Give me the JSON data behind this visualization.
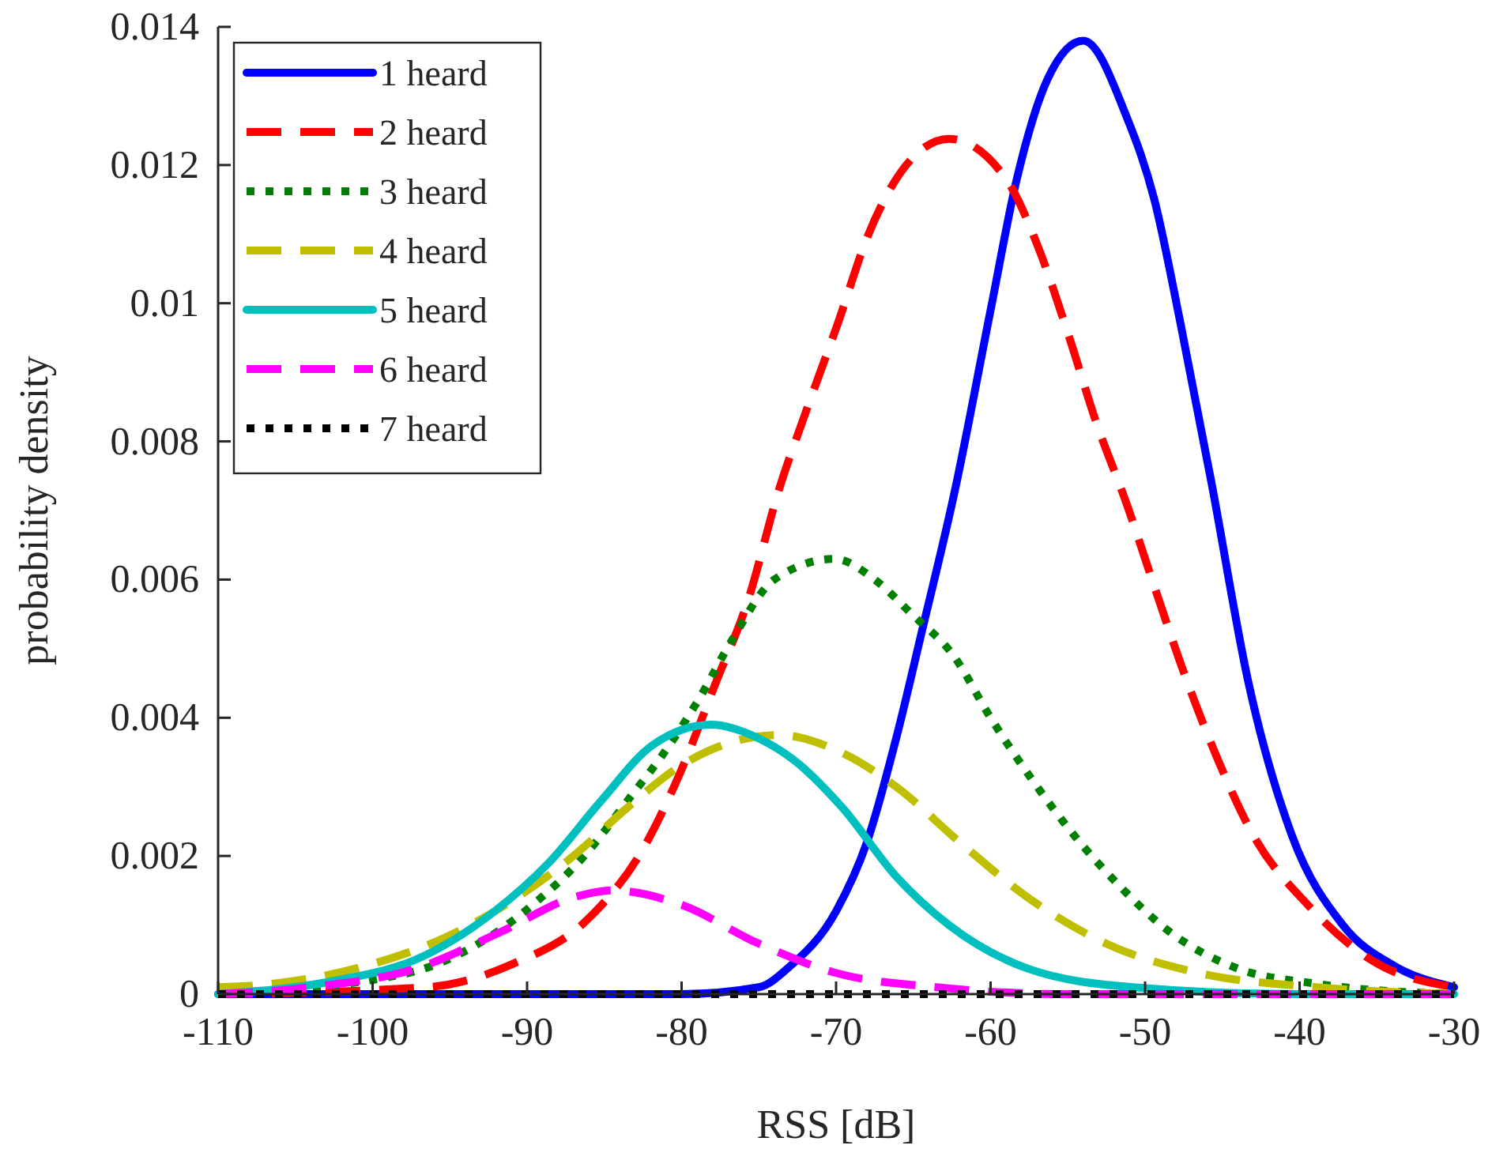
{
  "chart_data": {
    "type": "line",
    "xlabel": "RSS [dB]",
    "ylabel": "probability density",
    "xlim": [
      -110,
      -30
    ],
    "ylim": [
      0,
      0.014
    ],
    "xticks": [
      -110,
      -100,
      -90,
      -80,
      -70,
      -60,
      -50,
      -40,
      -30
    ],
    "yticks": [
      0,
      0.002,
      0.004,
      0.006,
      0.008,
      0.01,
      0.012,
      0.014
    ],
    "grid": false,
    "legend": "top left",
    "marker": "none",
    "series": [
      {
        "name": "1 heard",
        "color": "#0000ff",
        "line_style": "solid",
        "x": [
          -110,
          -90,
          -80,
          -75,
          -73,
          -70,
          -68,
          -66,
          -64.5,
          -62.3,
          -60,
          -58.3,
          -56.3,
          -54,
          -51.2,
          -49.4,
          -47.7,
          -45.7,
          -43.3,
          -40.5,
          -37.2,
          -33.8,
          -30
        ],
        "values": [
          0,
          0,
          0,
          0.0001,
          0.0004,
          0.0012,
          0.0022,
          0.0038,
          0.0052,
          0.0073,
          0.0099,
          0.0118,
          0.01325,
          0.0138,
          0.0127,
          0.0115,
          0.0097,
          0.0074,
          0.0045,
          0.0023,
          0.001,
          0.0004,
          0.0001
        ]
      },
      {
        "name": "2 heard",
        "color": "#ff0000",
        "line_style": "dashed",
        "x": [
          -110,
          -96.5,
          -91,
          -86,
          -82.5,
          -80.1,
          -77.8,
          -75.7,
          -73.7,
          -72,
          -69.9,
          -67.9,
          -65.8,
          -62.7,
          -59,
          -56.9,
          -54.9,
          -53.2,
          -51.2,
          -49.4,
          -47.4,
          -45.3,
          -43,
          -39.5,
          -35.4,
          -30
        ],
        "values": [
          0,
          0.0001,
          0.00043,
          0.0011,
          0.0021,
          0.0032,
          0.0045,
          0.0057,
          0.0073,
          0.0084,
          0.0097,
          0.011,
          0.0119,
          0.01238,
          0.0118,
          0.0108,
          0.0095,
          0.0083,
          0.0071,
          0.0059,
          0.0046,
          0.0034,
          0.0023,
          0.0013,
          0.0005,
          0.0001
        ]
      },
      {
        "name": "3 heard",
        "color": "#008000",
        "line_style": "dotted",
        "x": [
          -110,
          -97.8,
          -93.7,
          -89.6,
          -86.3,
          -83.5,
          -80.8,
          -78.8,
          -76.8,
          -74,
          -70.1,
          -67.5,
          -65.1,
          -62.4,
          -60,
          -57.3,
          -54.6,
          -51.8,
          -48.4,
          -44,
          -38.9,
          -30
        ],
        "values": [
          0,
          0.0003,
          0.00066,
          0.0013,
          0.002,
          0.0028,
          0.0036,
          0.0043,
          0.0051,
          0.006,
          0.0063,
          0.006,
          0.0055,
          0.0049,
          0.004,
          0.0031,
          0.0023,
          0.0016,
          0.0009,
          0.00037,
          0.00015,
          0
        ]
      },
      {
        "name": "4 heard",
        "color": "#bfbf00",
        "line_style": "dashed",
        "x": [
          -110,
          -107.4,
          -100.6,
          -95.5,
          -91,
          -87,
          -83.5,
          -80.1,
          -73.7,
          -69.7,
          -66.1,
          -62,
          -57.6,
          -52.5,
          -46.4,
          -38.9,
          -30
        ],
        "values": [
          0.0001,
          0.00013,
          0.0004,
          0.0008,
          0.00135,
          0.002,
          0.0027,
          0.0033,
          0.00375,
          0.0035,
          0.003,
          0.0022,
          0.0014,
          0.00073,
          0.0003,
          0.0001,
          0
        ]
      },
      {
        "name": "5 heard",
        "color": "#00bfbf",
        "line_style": "solid",
        "x": [
          -110,
          -102.3,
          -97.2,
          -92.1,
          -88.6,
          -85.2,
          -81.9,
          -78.1,
          -75,
          -72.8,
          -69.6,
          -66.1,
          -62.7,
          -57.6,
          -50.8,
          -40,
          -30
        ],
        "values": [
          0,
          0.0002,
          0.0005,
          0.0012,
          0.0019,
          0.0028,
          0.0036,
          0.0039,
          0.0037,
          0.0034,
          0.0027,
          0.0017,
          0.001,
          0.00037,
          0.0001,
          0,
          0
        ]
      },
      {
        "name": "6 heard",
        "color": "#ff00ff",
        "line_style": "dashed",
        "x": [
          -110,
          -104,
          -97.2,
          -91.7,
          -87,
          -84.5,
          -80.1,
          -75,
          -69.9,
          -63.5,
          -55,
          -30
        ],
        "values": [
          0,
          0.0001,
          0.00037,
          0.0009,
          0.0014,
          0.0015,
          0.0013,
          0.00073,
          0.0003,
          0.0001,
          0,
          0
        ]
      },
      {
        "name": "7 heard",
        "color": "#000000",
        "line_style": "dotted",
        "x": [
          -110,
          -90,
          -75,
          -60,
          -30
        ],
        "values": [
          0,
          0,
          0,
          0,
          0
        ]
      }
    ]
  }
}
